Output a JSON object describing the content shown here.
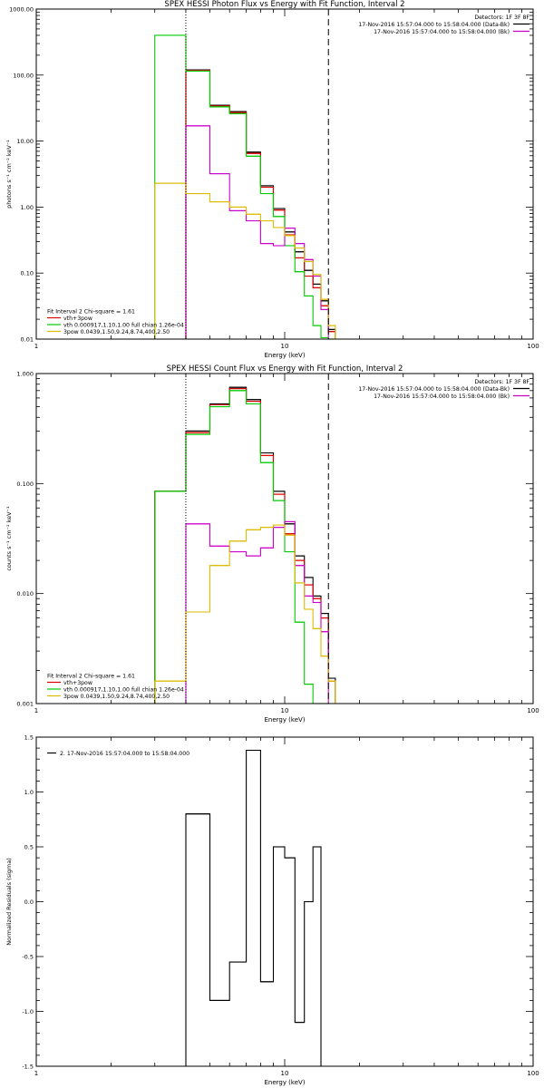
{
  "chart_data": [
    {
      "type": "line",
      "title": "SPEX HESSI Photon Flux vs Energy with Fit Function, Interval 2",
      "xlabel": "Energy (keV)",
      "ylabel": "photons s⁻¹ cm⁻² keV⁻¹",
      "x_scale": "log",
      "y_scale": "log",
      "xlim": [
        1,
        100
      ],
      "ylim": [
        0.01,
        1000
      ],
      "x_ticks": [
        "1",
        "10",
        "100"
      ],
      "y_ticks": [
        "0.01",
        "0.10",
        "1.00",
        "10.00",
        "100.00",
        "1000.00"
      ],
      "legend_top_right": [
        {
          "text": "Detectors: 1F 3F 8F",
          "color": "#000000",
          "swatch": false
        },
        {
          "text": "17-Nov-2016 15:57:04.000 to 15:58:04.000 (Data-Bk)",
          "color": "#000000",
          "swatch": true
        },
        {
          "text": "17-Nov-2016 15:57:04.000 to 15:58:04.000 (Bk)",
          "color": "#cc00cc",
          "swatch": true
        }
      ],
      "legend_bottom_left": [
        {
          "text": "Fit Interval 2   Chi-square = 1.61",
          "color": "#000000",
          "swatch": false
        },
        {
          "text": "vth+3pow",
          "color": "#dd0000",
          "swatch": true
        },
        {
          "text": "vth 0.000917,1.10,1.00  full chian 1.26e-04",
          "color": "#00cc00",
          "swatch": true
        },
        {
          "text": "3pow 0.0439,1.50,9.24,8.74,400,2.50",
          "color": "#ddbb00",
          "swatch": true
        }
      ],
      "vlines": [
        {
          "x": 4.0,
          "style": "dotted"
        },
        {
          "x": 15.0,
          "style": "dashed"
        }
      ],
      "bin_edges": [
        3.0,
        4.0,
        5.0,
        6.0,
        7.0,
        8.0,
        9.0,
        10.0,
        11.0,
        12.0,
        13.0,
        14.0,
        15.0,
        16.0
      ],
      "series": [
        {
          "key": "data_bk",
          "color": "#000000",
          "values": [
            null,
            120,
            35,
            28,
            6.8,
            2.1,
            0.95,
            0.42,
            0.21,
            0.11,
            0.068,
            0.038,
            0.014
          ]
        },
        {
          "key": "total_fit",
          "color": "#dd0000",
          "values": [
            null,
            118,
            34,
            27,
            6.5,
            2.0,
            0.9,
            0.38,
            0.17,
            0.09,
            0.06,
            0.032,
            0.013
          ]
        },
        {
          "key": "vth",
          "color": "#00cc00",
          "values": [
            400,
            115,
            33,
            26,
            5.9,
            1.6,
            0.72,
            0.26,
            0.105,
            0.045,
            0.016,
            0.0105,
            0.005
          ]
        },
        {
          "key": "bk",
          "color": "#cc00cc",
          "values": [
            null,
            17,
            3.2,
            0.88,
            0.62,
            0.28,
            0.26,
            0.48,
            0.28,
            0.16,
            0.09,
            0.028,
            null
          ]
        },
        {
          "key": "pow",
          "color": "#ddbb00",
          "values": [
            2.3,
            1.6,
            1.2,
            1.0,
            0.78,
            0.62,
            0.49,
            0.37,
            0.24,
            0.15,
            0.095,
            0.04,
            0.016
          ]
        }
      ]
    },
    {
      "type": "line",
      "title": "SPEX HESSI Count Flux vs Energy with Fit Function, Interval 2",
      "xlabel": "Energy (keV)",
      "ylabel": "counts s⁻¹ cm⁻² keV⁻¹",
      "x_scale": "log",
      "y_scale": "log",
      "xlim": [
        1,
        100
      ],
      "ylim": [
        0.001,
        1.0
      ],
      "x_ticks": [
        "1",
        "10",
        "100"
      ],
      "y_ticks": [
        "0.001",
        "0.010",
        "0.100",
        "1.000"
      ],
      "legend_top_right": [
        {
          "text": "Detectors: 1F 3F 8F",
          "color": "#000000",
          "swatch": false
        },
        {
          "text": "17-Nov-2016 15:57:04.000 to 15:58:04.000 (Data-Bk)",
          "color": "#000000",
          "swatch": true
        },
        {
          "text": "17-Nov-2016 15:57:04.000 to 15:58:04.000 (Bk)",
          "color": "#cc00cc",
          "swatch": true
        }
      ],
      "legend_bottom_left": [
        {
          "text": "Fit Interval 2   Chi-square = 1.61",
          "color": "#000000",
          "swatch": false
        },
        {
          "text": "vth+3pow",
          "color": "#dd0000",
          "swatch": true
        },
        {
          "text": "vth 0.000917,1.10,1.00  full chian 1.26e-04",
          "color": "#00cc00",
          "swatch": true
        },
        {
          "text": "3pow 0.0439,1.50,9.24,8.74,400,2.50",
          "color": "#ddbb00",
          "swatch": true
        }
      ],
      "vlines": [
        {
          "x": 4.0,
          "style": "dotted"
        },
        {
          "x": 15.0,
          "style": "dashed"
        }
      ],
      "bin_edges": [
        3.0,
        4.0,
        5.0,
        6.0,
        7.0,
        8.0,
        9.0,
        10.0,
        11.0,
        12.0,
        13.0,
        14.0,
        15.0,
        16.0
      ],
      "series": [
        {
          "key": "data_bk",
          "color": "#000000",
          "values": [
            0.085,
            0.3,
            0.53,
            0.75,
            0.58,
            0.19,
            0.085,
            0.043,
            0.022,
            0.014,
            0.0095,
            0.0066,
            0.0017
          ]
        },
        {
          "key": "total_fit",
          "color": "#dd0000",
          "values": [
            0.085,
            0.29,
            0.52,
            0.73,
            0.56,
            0.18,
            0.08,
            0.035,
            0.02,
            0.012,
            0.009,
            0.006,
            0.0016
          ]
        },
        {
          "key": "vth",
          "color": "#00cc00",
          "values": [
            0.085,
            0.28,
            0.5,
            0.7,
            0.53,
            0.155,
            0.07,
            0.024,
            0.0055,
            0.0015,
            0.001,
            0.001,
            null
          ]
        },
        {
          "key": "bk",
          "color": "#cc00cc",
          "values": [
            null,
            0.043,
            0.027,
            0.024,
            0.022,
            0.026,
            0.04,
            0.045,
            0.018,
            0.0095,
            0.0083,
            0.0045,
            null
          ]
        },
        {
          "key": "pow",
          "color": "#ddbb00",
          "values": [
            0.0016,
            0.0068,
            0.018,
            0.03,
            0.038,
            0.04,
            0.042,
            0.034,
            0.0125,
            0.0072,
            0.0048,
            0.0027,
            0.0016
          ]
        }
      ]
    },
    {
      "type": "line",
      "title": "",
      "xlabel": "Energy (keV)",
      "ylabel": "Normalized Residuals (sigma)",
      "x_scale": "log",
      "y_scale": "linear",
      "xlim": [
        1,
        100
      ],
      "ylim": [
        -1.5,
        1.5
      ],
      "x_ticks": [
        "1",
        "10",
        "100"
      ],
      "y_ticks": [
        "-1.5",
        "-1.0",
        "-0.5",
        "0.0",
        "0.5",
        "1.0",
        "1.5"
      ],
      "legend_top_left": [
        {
          "text": "2. 17-Nov-2016 15:57:04.000 to 15:58:04.000",
          "color": "#000000",
          "swatch": true
        }
      ],
      "bin_edges": [
        4.0,
        5.0,
        6.0,
        7.0,
        8.0,
        9.0,
        10.0,
        11.0,
        12.0,
        13.0,
        14.0,
        15.0
      ],
      "series": [
        {
          "key": "residuals",
          "color": "#000000",
          "values": [
            0.8,
            -0.9,
            -0.55,
            1.38,
            -0.73,
            0.5,
            0.4,
            -1.1,
            0.0,
            0.5,
            null
          ]
        }
      ]
    }
  ]
}
